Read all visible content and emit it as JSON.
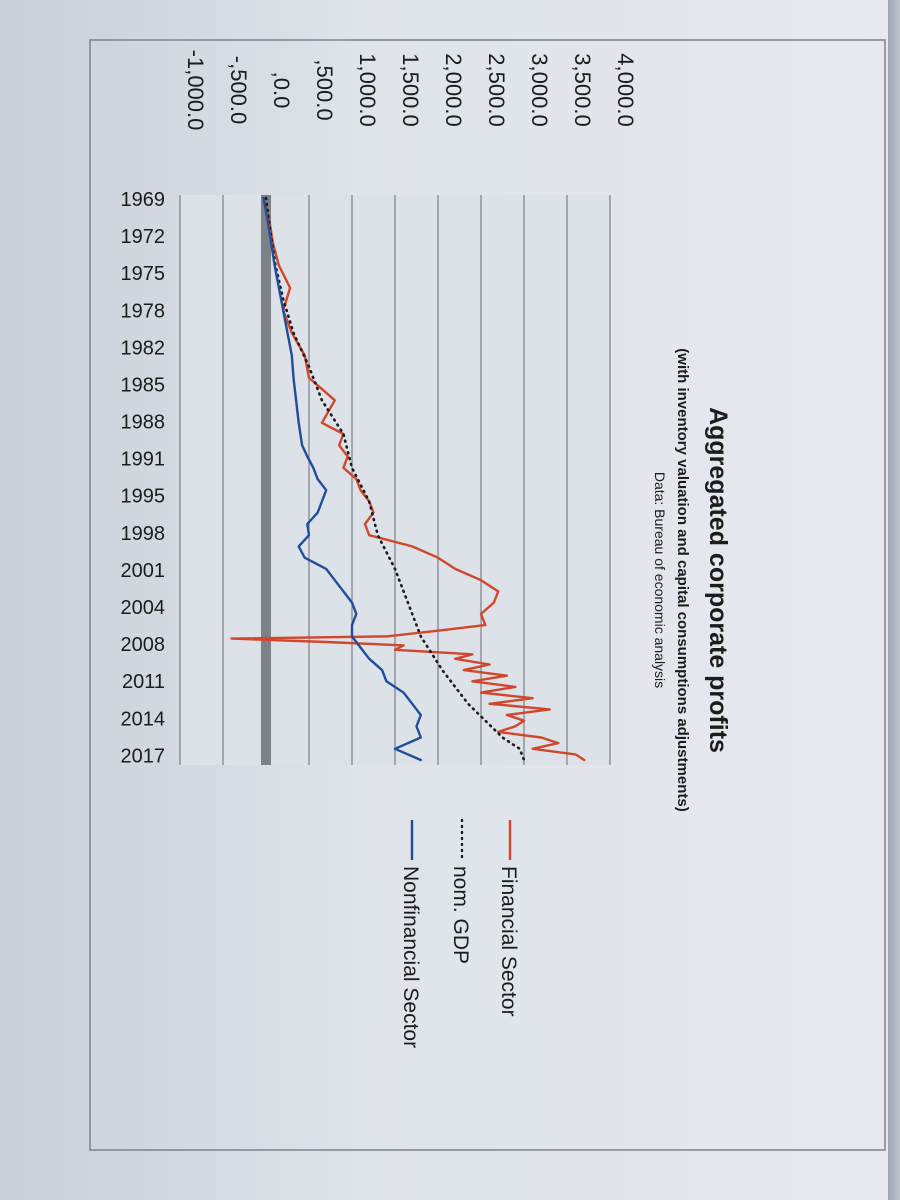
{
  "chart_data": {
    "type": "line",
    "title": "Aggregated corporate profits",
    "subtitle": "(with inventory valuation and capital  consumptions adjustments)",
    "source": "Data: Bureau of economic analysis",
    "ytick_labels": [
      "4,000.0",
      "3,500.0",
      "3,000.0",
      "2,500.0",
      "2,000.0",
      "1,500.0",
      "1,000.0",
      ",500.0",
      ",0.0",
      "-,500.0",
      "-1,000.0"
    ],
    "yticks": [
      4000,
      3500,
      3000,
      2500,
      2000,
      1500,
      1000,
      500,
      0,
      -500,
      -1000
    ],
    "ylim": [
      -1000,
      4000
    ],
    "xlim": [
      1969,
      2019
    ],
    "xtick_labels": [
      "1969",
      "1972",
      "1975",
      "1978",
      "1982",
      "1985",
      "1988",
      "1991",
      "1995",
      "1998",
      "2001",
      "2004",
      "2008",
      "2011",
      "2014",
      "2017"
    ],
    "xticks": [
      1969,
      1972.3,
      1975.6,
      1978.9,
      1982.2,
      1985.5,
      1988.8,
      1992.1,
      1995.4,
      1998.7,
      2002,
      2005.3,
      2008.6,
      2011.9,
      2015.2,
      2018.5
    ],
    "grid": true,
    "legend_position": "right",
    "series": [
      {
        "name": "Financial Sector",
        "color": "#d0472b",
        "style": "solid",
        "x": [
          1969,
          1971,
          1973,
          1975,
          1977,
          1979,
          1981,
          1983,
          1985,
          1987,
          1989,
          1990,
          1991,
          1992,
          1993,
          1994,
          1995,
          1996,
          1997,
          1998,
          1999,
          2000,
          2001,
          2002,
          2003,
          2004,
          2005,
          2006,
          2007,
          2007.5,
          2008,
          2008.2,
          2008.5,
          2008.8,
          2009.2,
          2009.6,
          2010,
          2010.5,
          2011,
          2011.5,
          2012,
          2012.5,
          2013,
          2013.5,
          2014,
          2014.5,
          2015,
          2015.5,
          2016,
          2016.5,
          2017,
          2017.5,
          2018,
          2018.5,
          2019
        ],
        "y": [
          -30,
          40,
          80,
          150,
          280,
          200,
          300,
          450,
          500,
          800,
          650,
          900,
          850,
          950,
          900,
          1050,
          1100,
          1200,
          1250,
          1150,
          1200,
          1700,
          2000,
          2200,
          2500,
          2700,
          2650,
          2500,
          2550,
          2000,
          1400,
          -400,
          700,
          1600,
          1500,
          2400,
          2200,
          2600,
          2300,
          2800,
          2400,
          2900,
          2500,
          3100,
          2600,
          3300,
          2800,
          3000,
          2900,
          2700,
          3200,
          3400,
          3100,
          3600,
          3700
        ]
      },
      {
        "name": "nom. GDP",
        "color": "#1c1c1c",
        "style": "dotted",
        "x": [
          1969,
          1972,
          1975,
          1978,
          1981,
          1984,
          1987,
          1990,
          1993,
          1996,
          1999,
          2002,
          2005,
          2008,
          2011,
          2014,
          2017,
          2018,
          2019
        ],
        "y": [
          0,
          50,
          110,
          200,
          320,
          500,
          650,
          900,
          1000,
          1200,
          1300,
          1500,
          1650,
          1800,
          2050,
          2350,
          2750,
          2950,
          3000
        ]
      },
      {
        "name": "Nonfinancial Sector",
        "color": "#1f4f9a",
        "style": "solid",
        "x": [
          1969,
          1971,
          1973,
          1975,
          1977,
          1979,
          1981,
          1983,
          1985,
          1987,
          1989,
          1990,
          1991,
          1992,
          1993,
          1994,
          1995,
          1996,
          1997,
          1998,
          1999,
          2000,
          2001,
          2002,
          2003,
          2004,
          2005,
          2006,
          2007,
          2008,
          2009,
          2010,
          2011,
          2012,
          2013,
          2014,
          2015,
          2016,
          2017,
          2018,
          2019
        ],
        "y": [
          -30,
          20,
          60,
          100,
          150,
          200,
          250,
          300,
          320,
          350,
          380,
          400,
          420,
          480,
          550,
          600,
          700,
          650,
          600,
          480,
          500,
          380,
          450,
          700,
          800,
          900,
          1000,
          1050,
          1000,
          1000,
          1100,
          1200,
          1350,
          1400,
          1600,
          1700,
          1800,
          1750,
          1800,
          1500,
          1800
        ]
      }
    ]
  }
}
